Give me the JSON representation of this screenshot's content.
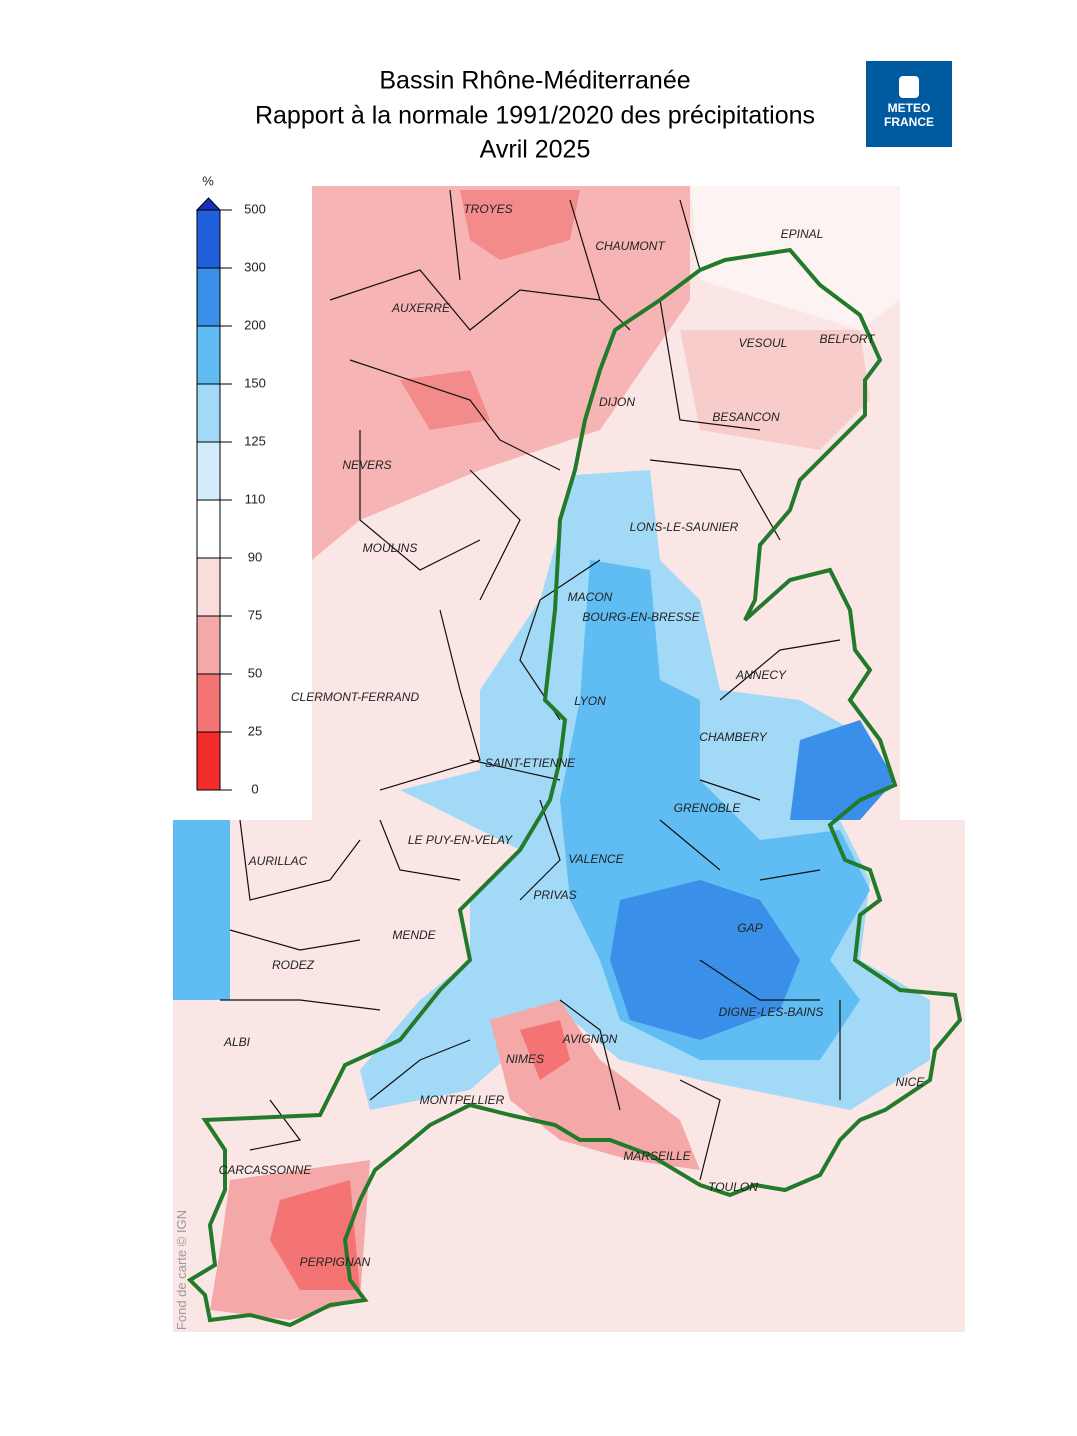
{
  "header": {
    "title_lines": [
      "Bassin Rhône-Méditerranée",
      "Rapport à la normale 1991/2020 des précipitations",
      "Avril 2025"
    ],
    "logo": [
      "METEO",
      "FRANCE"
    ]
  },
  "legend": {
    "unit": "%",
    "ticks": [
      0,
      25,
      50,
      75,
      90,
      110,
      125,
      150,
      200,
      300,
      500
    ],
    "colors": [
      "#f22b2b",
      "#f47474",
      "#f5a8a8",
      "#fbdcdc",
      "#ffffff",
      "#d3ecfa",
      "#a2d9f7",
      "#5fbdf4",
      "#3a90e8",
      "#1f5fdc"
    ],
    "overflow_color": "#1930b8"
  },
  "cities": [
    "TROYES",
    "CHAUMONT",
    "EPINAL",
    "AUXERRE",
    "VESOUL",
    "BELFORT",
    "DIJON",
    "BESANCON",
    "NEVERS",
    "LONS-LE-SAUNIER",
    "MOULINS",
    "MACON",
    "BOURG-EN-BRESSE",
    "ANNECY",
    "CLERMONT-FERRAND",
    "LYON",
    "CHAMBERY",
    "SAINT-ETIENNE",
    "GRENOBLE",
    "LE PUY-EN-VELAY",
    "AURILLAC",
    "VALENCE",
    "PRIVAS",
    "MENDE",
    "GAP",
    "RODEZ",
    "DIGNE-LES-BAINS",
    "ALBI",
    "AVIGNON",
    "NIMES",
    "NICE",
    "MONTPELLIER",
    "MARSEILLE",
    "CARCASSONNE",
    "TOULON",
    "PERPIGNAN"
  ],
  "credit": "Fond de carte © IGN"
}
